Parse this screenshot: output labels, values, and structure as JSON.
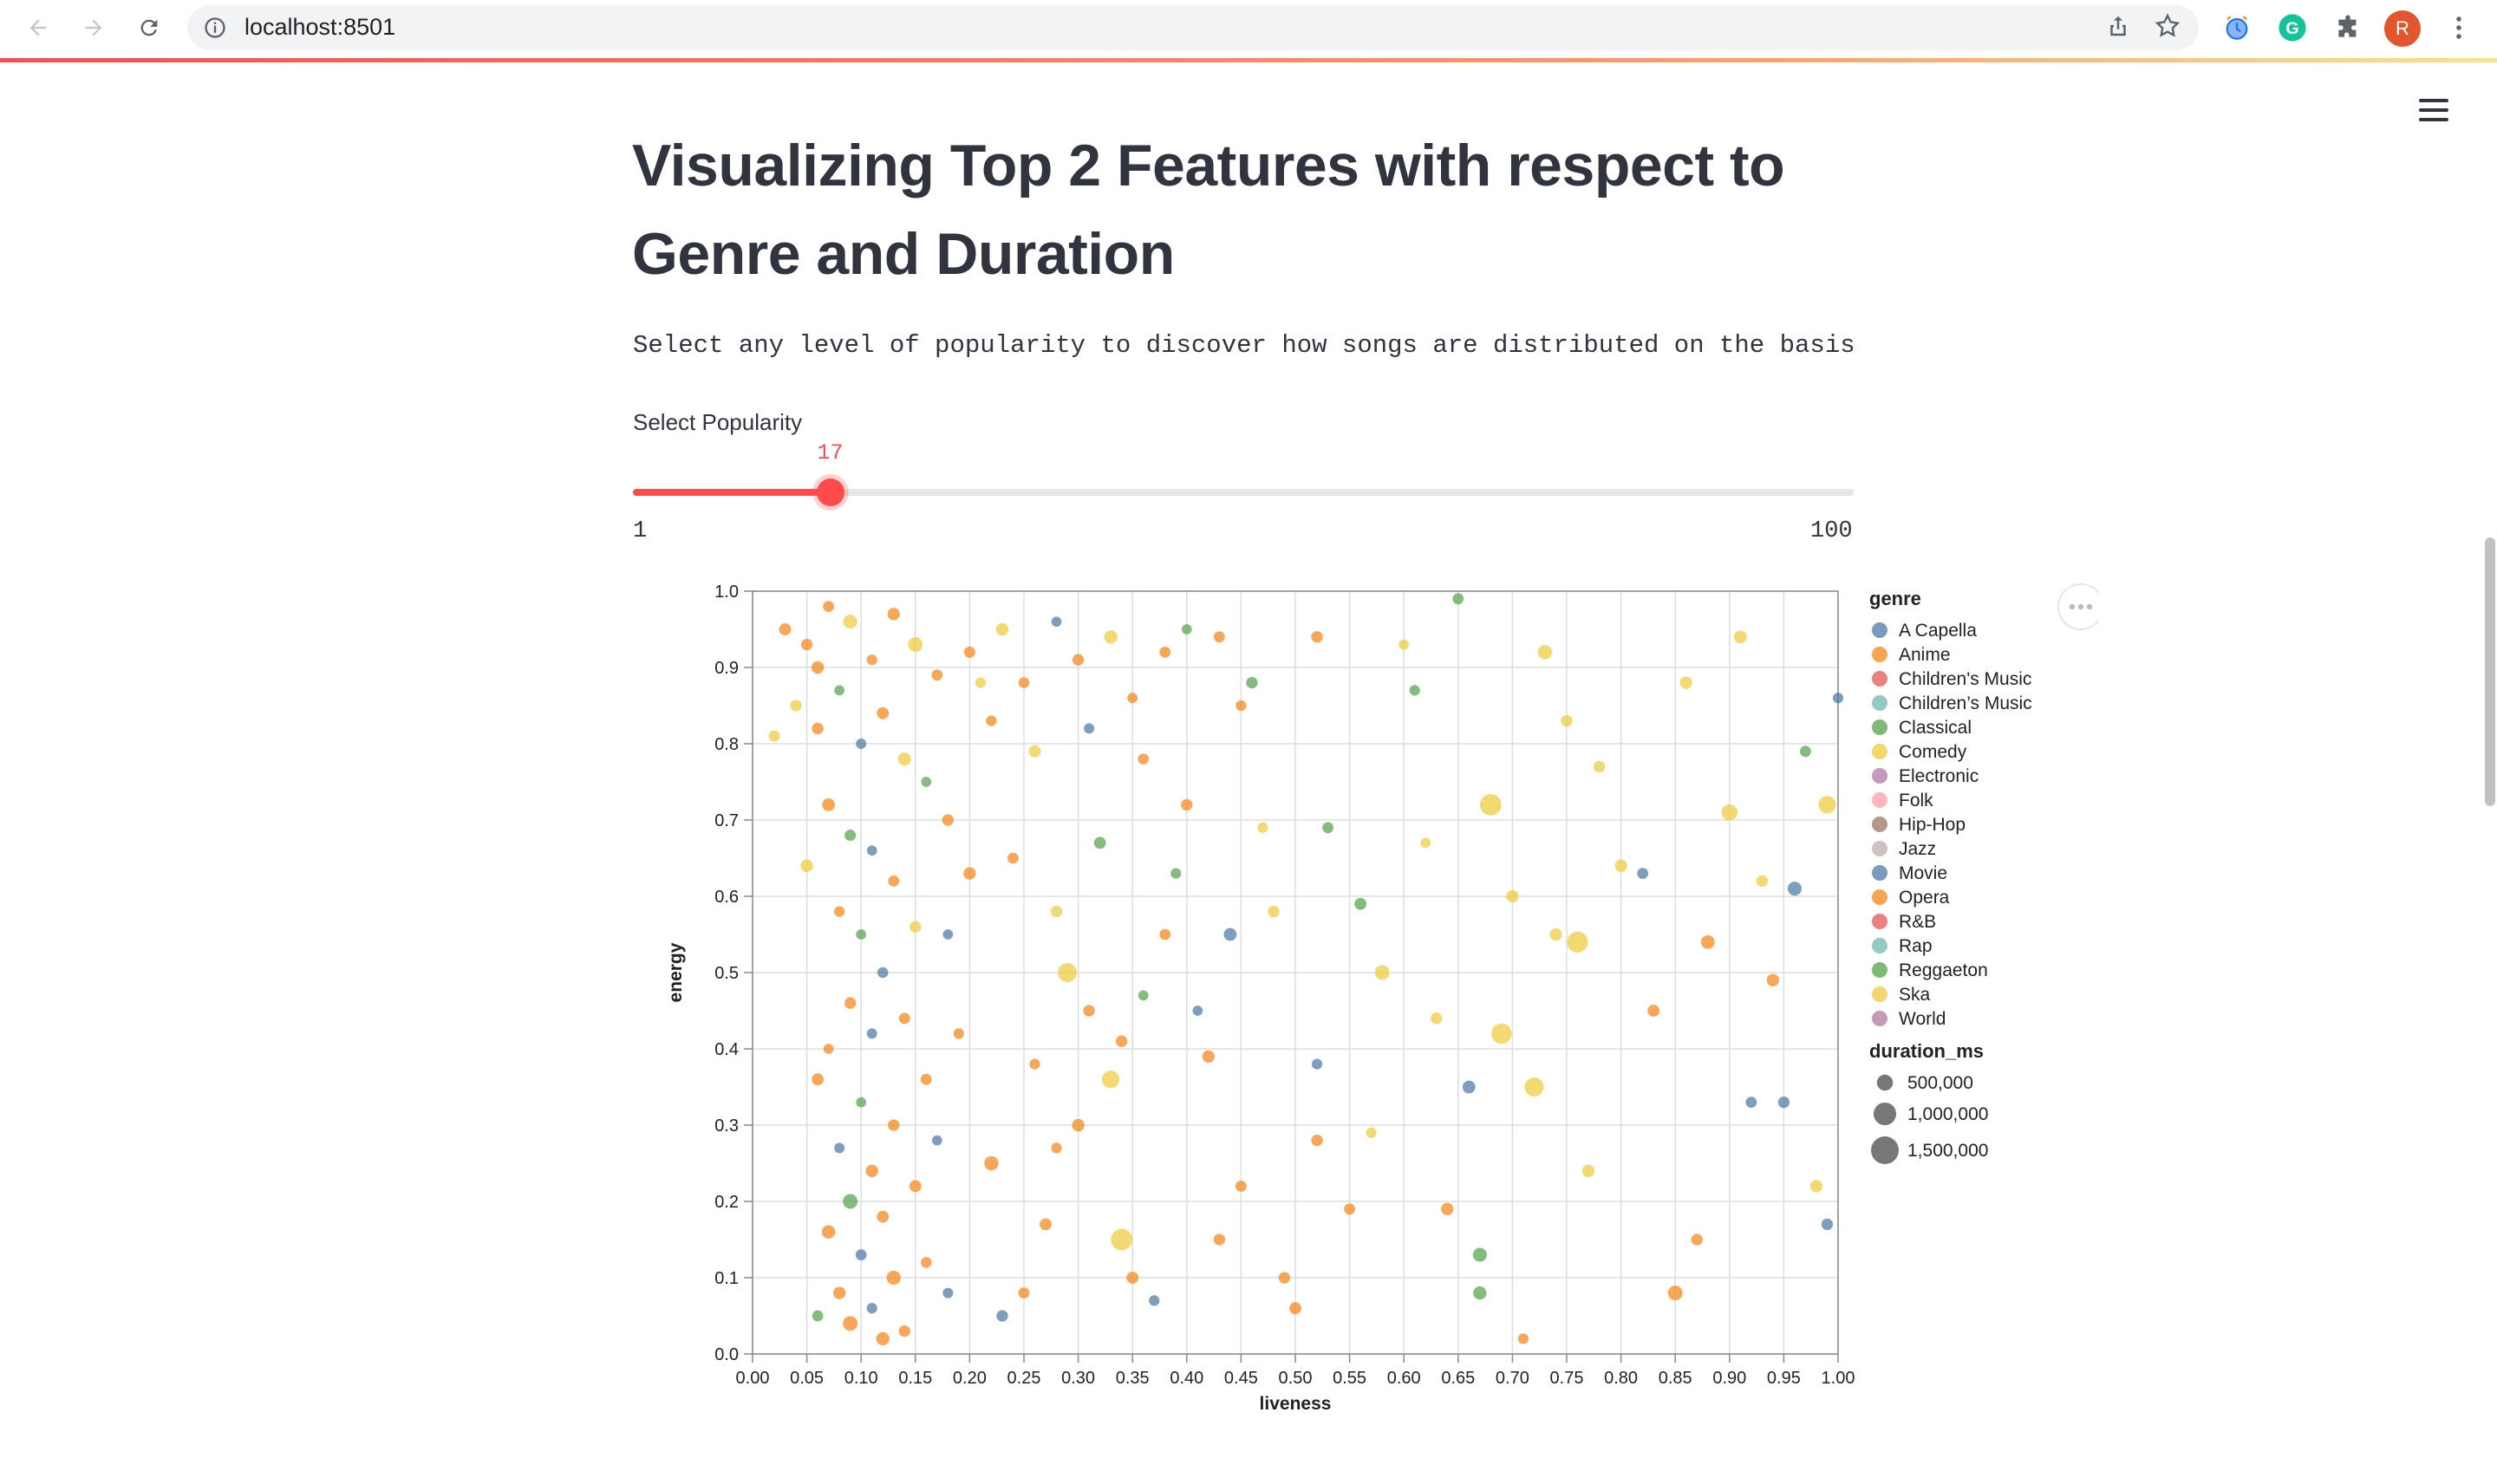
{
  "browser": {
    "url": "localhost:8501",
    "profile_initial": "R",
    "icons": [
      "back-icon",
      "forward-icon",
      "reload-icon",
      "info-icon",
      "share-icon",
      "star-icon",
      "alarm-extension-icon",
      "grammarly-icon",
      "puzzle-icon",
      "menu-kebab-icon"
    ]
  },
  "page": {
    "title": "Visualizing Top 2 Features with respect to Genre and Duration",
    "description": "Select any level of popularity to discover how songs are distributed on the basis of",
    "accent_color": "#ff4b4b"
  },
  "slider": {
    "label": "Select Popularity",
    "value": 17,
    "value_text": "17",
    "min": 1,
    "max": 100,
    "min_text": "1",
    "max_text": "100"
  },
  "chart_data": {
    "type": "scatter",
    "xlabel": "liveness",
    "ylabel": "energy",
    "xlim": [
      0,
      1
    ],
    "ylim": [
      0,
      1
    ],
    "x_ticks": [
      "0.00",
      "0.05",
      "0.10",
      "0.15",
      "0.20",
      "0.25",
      "0.30",
      "0.35",
      "0.40",
      "0.45",
      "0.50",
      "0.55",
      "0.60",
      "0.65",
      "0.70",
      "0.75",
      "0.80",
      "0.85",
      "0.90",
      "0.95",
      "1.00"
    ],
    "y_ticks": [
      "0.0",
      "0.1",
      "0.2",
      "0.3",
      "0.4",
      "0.5",
      "0.6",
      "0.7",
      "0.8",
      "0.9",
      "1.0"
    ],
    "grid": true,
    "legend_position": "right",
    "color_legend_title": "genre",
    "genres": [
      {
        "name": "A Capella",
        "color": "#4c78a8"
      },
      {
        "name": "Anime",
        "color": "#f58518"
      },
      {
        "name": "Children's Music",
        "color": "#e45756"
      },
      {
        "name": "Children’s Music",
        "color": "#72b7b2"
      },
      {
        "name": "Classical",
        "color": "#54a24b"
      },
      {
        "name": "Comedy",
        "color": "#eeca3b"
      },
      {
        "name": "Electronic",
        "color": "#b279a2"
      },
      {
        "name": "Folk",
        "color": "#ff9da6"
      },
      {
        "name": "Hip-Hop",
        "color": "#9d755d"
      },
      {
        "name": "Jazz",
        "color": "#bab0ac"
      },
      {
        "name": "Movie",
        "color": "#4c78a8"
      },
      {
        "name": "Opera",
        "color": "#f58518"
      },
      {
        "name": "R&B",
        "color": "#e45756"
      },
      {
        "name": "Rap",
        "color": "#72b7b2"
      },
      {
        "name": "Reggaeton",
        "color": "#54a24b"
      },
      {
        "name": "Ska",
        "color": "#eeca3b"
      },
      {
        "name": "World",
        "color": "#b279a2"
      }
    ],
    "size_legend_title": "duration_ms",
    "size_legend": [
      {
        "label": "500,000",
        "value": 500000
      },
      {
        "label": "1,000,000",
        "value": 1000000
      },
      {
        "label": "1,500,000",
        "value": 1500000
      }
    ],
    "points": [
      {
        "x": 0.05,
        "y": 0.93,
        "g": "Anime",
        "d": 260000
      },
      {
        "x": 0.07,
        "y": 0.98,
        "g": "Anime",
        "d": 240000
      },
      {
        "x": 0.09,
        "y": 0.96,
        "g": "Comedy",
        "d": 380000
      },
      {
        "x": 0.11,
        "y": 0.91,
        "g": "Anime",
        "d": 220000
      },
      {
        "x": 0.13,
        "y": 0.97,
        "g": "Anime",
        "d": 300000
      },
      {
        "x": 0.15,
        "y": 0.93,
        "g": "Comedy",
        "d": 420000
      },
      {
        "x": 0.08,
        "y": 0.87,
        "g": "Classical",
        "d": 200000
      },
      {
        "x": 0.06,
        "y": 0.82,
        "g": "Anime",
        "d": 260000
      },
      {
        "x": 0.1,
        "y": 0.8,
        "g": "Movie",
        "d": 210000
      },
      {
        "x": 0.12,
        "y": 0.84,
        "g": "Anime",
        "d": 280000
      },
      {
        "x": 0.14,
        "y": 0.78,
        "g": "Comedy",
        "d": 330000
      },
      {
        "x": 0.17,
        "y": 0.89,
        "g": "Anime",
        "d": 240000
      },
      {
        "x": 0.2,
        "y": 0.92,
        "g": "Anime",
        "d": 250000
      },
      {
        "x": 0.23,
        "y": 0.95,
        "g": "Comedy",
        "d": 310000
      },
      {
        "x": 0.25,
        "y": 0.88,
        "g": "Anime",
        "d": 230000
      },
      {
        "x": 0.28,
        "y": 0.96,
        "g": "Movie",
        "d": 200000
      },
      {
        "x": 0.3,
        "y": 0.91,
        "g": "Anime",
        "d": 260000
      },
      {
        "x": 0.33,
        "y": 0.94,
        "g": "Comedy",
        "d": 350000
      },
      {
        "x": 0.35,
        "y": 0.86,
        "g": "Anime",
        "d": 210000
      },
      {
        "x": 0.38,
        "y": 0.92,
        "g": "Anime",
        "d": 240000
      },
      {
        "x": 0.4,
        "y": 0.95,
        "g": "Classical",
        "d": 200000
      },
      {
        "x": 0.22,
        "y": 0.83,
        "g": "Anime",
        "d": 220000
      },
      {
        "x": 0.26,
        "y": 0.79,
        "g": "Comedy",
        "d": 290000
      },
      {
        "x": 0.31,
        "y": 0.82,
        "g": "Movie",
        "d": 210000
      },
      {
        "x": 0.36,
        "y": 0.78,
        "g": "Anime",
        "d": 230000
      },
      {
        "x": 0.16,
        "y": 0.75,
        "g": "Classical",
        "d": 200000
      },
      {
        "x": 0.18,
        "y": 0.7,
        "g": "Anime",
        "d": 260000
      },
      {
        "x": 0.07,
        "y": 0.72,
        "g": "Anime",
        "d": 320000
      },
      {
        "x": 0.09,
        "y": 0.68,
        "g": "Classical",
        "d": 250000
      },
      {
        "x": 0.11,
        "y": 0.66,
        "g": "Movie",
        "d": 200000
      },
      {
        "x": 0.05,
        "y": 0.64,
        "g": "Comedy",
        "d": 300000
      },
      {
        "x": 0.13,
        "y": 0.62,
        "g": "Anime",
        "d": 240000
      },
      {
        "x": 0.08,
        "y": 0.58,
        "g": "Anime",
        "d": 220000
      },
      {
        "x": 0.1,
        "y": 0.55,
        "g": "Classical",
        "d": 200000
      },
      {
        "x": 0.12,
        "y": 0.5,
        "g": "Movie",
        "d": 230000
      },
      {
        "x": 0.09,
        "y": 0.46,
        "g": "Anime",
        "d": 260000
      },
      {
        "x": 0.11,
        "y": 0.42,
        "g": "Movie",
        "d": 210000
      },
      {
        "x": 0.07,
        "y": 0.4,
        "g": "Anime",
        "d": 200000
      },
      {
        "x": 0.14,
        "y": 0.44,
        "g": "Anime",
        "d": 240000
      },
      {
        "x": 0.06,
        "y": 0.36,
        "g": "Anime",
        "d": 280000
      },
      {
        "x": 0.1,
        "y": 0.33,
        "g": "Classical",
        "d": 200000
      },
      {
        "x": 0.13,
        "y": 0.3,
        "g": "Anime",
        "d": 260000
      },
      {
        "x": 0.08,
        "y": 0.27,
        "g": "Movie",
        "d": 210000
      },
      {
        "x": 0.11,
        "y": 0.24,
        "g": "Anime",
        "d": 300000
      },
      {
        "x": 0.09,
        "y": 0.2,
        "g": "Classical",
        "d": 420000
      },
      {
        "x": 0.12,
        "y": 0.18,
        "g": "Anime",
        "d": 280000
      },
      {
        "x": 0.07,
        "y": 0.16,
        "g": "Anime",
        "d": 350000
      },
      {
        "x": 0.1,
        "y": 0.13,
        "g": "Movie",
        "d": 240000
      },
      {
        "x": 0.13,
        "y": 0.1,
        "g": "Anime",
        "d": 380000
      },
      {
        "x": 0.08,
        "y": 0.08,
        "g": "Anime",
        "d": 300000
      },
      {
        "x": 0.11,
        "y": 0.06,
        "g": "Movie",
        "d": 220000
      },
      {
        "x": 0.09,
        "y": 0.04,
        "g": "Anime",
        "d": 420000
      },
      {
        "x": 0.14,
        "y": 0.03,
        "g": "Anime",
        "d": 260000
      },
      {
        "x": 0.06,
        "y": 0.05,
        "g": "Classical",
        "d": 240000
      },
      {
        "x": 0.12,
        "y": 0.02,
        "g": "Anime",
        "d": 340000
      },
      {
        "x": 0.16,
        "y": 0.12,
        "g": "Anime",
        "d": 230000
      },
      {
        "x": 0.18,
        "y": 0.08,
        "g": "Movie",
        "d": 210000
      },
      {
        "x": 0.15,
        "y": 0.22,
        "g": "Anime",
        "d": 280000
      },
      {
        "x": 0.17,
        "y": 0.28,
        "g": "Movie",
        "d": 200000
      },
      {
        "x": 0.16,
        "y": 0.36,
        "g": "Anime",
        "d": 240000
      },
      {
        "x": 0.19,
        "y": 0.42,
        "g": "Anime",
        "d": 220000
      },
      {
        "x": 0.18,
        "y": 0.55,
        "g": "Movie",
        "d": 200000
      },
      {
        "x": 0.2,
        "y": 0.63,
        "g": "Anime",
        "d": 300000
      },
      {
        "x": 0.22,
        "y": 0.25,
        "g": "Anime",
        "d": 400000
      },
      {
        "x": 0.23,
        "y": 0.05,
        "g": "Movie",
        "d": 260000
      },
      {
        "x": 0.25,
        "y": 0.08,
        "g": "Anime",
        "d": 240000
      },
      {
        "x": 0.27,
        "y": 0.17,
        "g": "Anime",
        "d": 280000
      },
      {
        "x": 0.28,
        "y": 0.27,
        "g": "Anime",
        "d": 220000
      },
      {
        "x": 0.3,
        "y": 0.3,
        "g": "Anime",
        "d": 300000
      },
      {
        "x": 0.29,
        "y": 0.5,
        "g": "Comedy",
        "d": 700000
      },
      {
        "x": 0.31,
        "y": 0.45,
        "g": "Anime",
        "d": 260000
      },
      {
        "x": 0.33,
        "y": 0.36,
        "g": "Comedy",
        "d": 600000
      },
      {
        "x": 0.34,
        "y": 0.15,
        "g": "Comedy",
        "d": 900000
      },
      {
        "x": 0.35,
        "y": 0.1,
        "g": "Anime",
        "d": 280000
      },
      {
        "x": 0.37,
        "y": 0.07,
        "g": "Movie",
        "d": 220000
      },
      {
        "x": 0.34,
        "y": 0.41,
        "g": "Anime",
        "d": 260000
      },
      {
        "x": 0.36,
        "y": 0.47,
        "g": "Classical",
        "d": 200000
      },
      {
        "x": 0.38,
        "y": 0.55,
        "g": "Anime",
        "d": 240000
      },
      {
        "x": 0.39,
        "y": 0.63,
        "g": "Classical",
        "d": 220000
      },
      {
        "x": 0.4,
        "y": 0.72,
        "g": "Anime",
        "d": 260000
      },
      {
        "x": 0.42,
        "y": 0.39,
        "g": "Anime",
        "d": 300000
      },
      {
        "x": 0.43,
        "y": 0.15,
        "g": "Anime",
        "d": 260000
      },
      {
        "x": 0.44,
        "y": 0.55,
        "g": "Movie",
        "d": 320000
      },
      {
        "x": 0.45,
        "y": 0.22,
        "g": "Anime",
        "d": 240000
      },
      {
        "x": 0.47,
        "y": 0.69,
        "g": "Comedy",
        "d": 220000
      },
      {
        "x": 0.48,
        "y": 0.58,
        "g": "Comedy",
        "d": 260000
      },
      {
        "x": 0.49,
        "y": 0.1,
        "g": "Anime",
        "d": 260000
      },
      {
        "x": 0.5,
        "y": 0.06,
        "g": "Anime",
        "d": 280000
      },
      {
        "x": 0.52,
        "y": 0.38,
        "g": "Movie",
        "d": 220000
      },
      {
        "x": 0.52,
        "y": 0.28,
        "g": "Anime",
        "d": 260000
      },
      {
        "x": 0.53,
        "y": 0.69,
        "g": "Classical",
        "d": 240000
      },
      {
        "x": 0.55,
        "y": 0.19,
        "g": "Anime",
        "d": 240000
      },
      {
        "x": 0.56,
        "y": 0.59,
        "g": "Classical",
        "d": 280000
      },
      {
        "x": 0.58,
        "y": 0.5,
        "g": "Comedy",
        "d": 420000
      },
      {
        "x": 0.6,
        "y": 0.93,
        "g": "Comedy",
        "d": 200000
      },
      {
        "x": 0.61,
        "y": 0.87,
        "g": "Classical",
        "d": 220000
      },
      {
        "x": 0.62,
        "y": 0.67,
        "g": "Comedy",
        "d": 200000
      },
      {
        "x": 0.64,
        "y": 0.19,
        "g": "Anime",
        "d": 300000
      },
      {
        "x": 0.65,
        "y": 0.99,
        "g": "Classical",
        "d": 240000
      },
      {
        "x": 0.66,
        "y": 0.35,
        "g": "Movie",
        "d": 320000
      },
      {
        "x": 0.67,
        "y": 0.13,
        "g": "Classical",
        "d": 380000
      },
      {
        "x": 0.67,
        "y": 0.08,
        "g": "Classical",
        "d": 340000
      },
      {
        "x": 0.68,
        "y": 0.72,
        "g": "Comedy",
        "d": 900000
      },
      {
        "x": 0.69,
        "y": 0.42,
        "g": "Comedy",
        "d": 800000
      },
      {
        "x": 0.7,
        "y": 0.6,
        "g": "Comedy",
        "d": 300000
      },
      {
        "x": 0.72,
        "y": 0.35,
        "g": "Comedy",
        "d": 700000
      },
      {
        "x": 0.73,
        "y": 0.92,
        "g": "Comedy",
        "d": 400000
      },
      {
        "x": 0.74,
        "y": 0.55,
        "g": "Comedy",
        "d": 300000
      },
      {
        "x": 0.75,
        "y": 0.83,
        "g": "Comedy",
        "d": 260000
      },
      {
        "x": 0.76,
        "y": 0.54,
        "g": "Comedy",
        "d": 850000
      },
      {
        "x": 0.78,
        "y": 0.77,
        "g": "Comedy",
        "d": 260000
      },
      {
        "x": 0.8,
        "y": 0.64,
        "g": "Comedy",
        "d": 300000
      },
      {
        "x": 0.82,
        "y": 0.63,
        "g": "Movie",
        "d": 240000
      },
      {
        "x": 0.83,
        "y": 0.45,
        "g": "Anime",
        "d": 280000
      },
      {
        "x": 0.85,
        "y": 0.08,
        "g": "Anime",
        "d": 420000
      },
      {
        "x": 0.86,
        "y": 0.88,
        "g": "Comedy",
        "d": 300000
      },
      {
        "x": 0.88,
        "y": 0.54,
        "g": "Anime",
        "d": 360000
      },
      {
        "x": 0.9,
        "y": 0.71,
        "g": "Comedy",
        "d": 500000
      },
      {
        "x": 0.91,
        "y": 0.94,
        "g": "Comedy",
        "d": 320000
      },
      {
        "x": 0.92,
        "y": 0.33,
        "g": "Movie",
        "d": 240000
      },
      {
        "x": 0.93,
        "y": 0.62,
        "g": "Comedy",
        "d": 260000
      },
      {
        "x": 0.94,
        "y": 0.49,
        "g": "Anime",
        "d": 300000
      },
      {
        "x": 0.95,
        "y": 0.33,
        "g": "Movie",
        "d": 260000
      },
      {
        "x": 0.96,
        "y": 0.61,
        "g": "Movie",
        "d": 380000
      },
      {
        "x": 0.97,
        "y": 0.79,
        "g": "Classical",
        "d": 240000
      },
      {
        "x": 0.98,
        "y": 0.22,
        "g": "Comedy",
        "d": 300000
      },
      {
        "x": 0.99,
        "y": 0.72,
        "g": "Comedy",
        "d": 600000
      },
      {
        "x": 1.0,
        "y": 0.86,
        "g": "Movie",
        "d": 220000
      },
      {
        "x": 0.99,
        "y": 0.17,
        "g": "Movie",
        "d": 260000
      },
      {
        "x": 0.87,
        "y": 0.15,
        "g": "Anime",
        "d": 260000
      },
      {
        "x": 0.77,
        "y": 0.24,
        "g": "Comedy",
        "d": 300000
      },
      {
        "x": 0.71,
        "y": 0.02,
        "g": "Anime",
        "d": 220000
      },
      {
        "x": 0.63,
        "y": 0.44,
        "g": "Comedy",
        "d": 260000
      },
      {
        "x": 0.57,
        "y": 0.29,
        "g": "Comedy",
        "d": 220000
      },
      {
        "x": 0.46,
        "y": 0.88,
        "g": "Classical",
        "d": 260000
      },
      {
        "x": 0.43,
        "y": 0.94,
        "g": "Anime",
        "d": 240000
      },
      {
        "x": 0.52,
        "y": 0.94,
        "g": "Anime",
        "d": 260000
      },
      {
        "x": 0.41,
        "y": 0.45,
        "g": "Movie",
        "d": 200000
      },
      {
        "x": 0.06,
        "y": 0.9,
        "g": "Anime",
        "d": 300000
      },
      {
        "x": 0.04,
        "y": 0.85,
        "g": "Comedy",
        "d": 260000
      },
      {
        "x": 0.03,
        "y": 0.95,
        "g": "Anime",
        "d": 280000
      },
      {
        "x": 0.02,
        "y": 0.81,
        "g": "Comedy",
        "d": 240000
      },
      {
        "x": 0.15,
        "y": 0.56,
        "g": "Comedy",
        "d": 260000
      },
      {
        "x": 0.21,
        "y": 0.88,
        "g": "Comedy",
        "d": 220000
      },
      {
        "x": 0.24,
        "y": 0.65,
        "g": "Anime",
        "d": 240000
      },
      {
        "x": 0.26,
        "y": 0.38,
        "g": "Anime",
        "d": 220000
      },
      {
        "x": 0.32,
        "y": 0.67,
        "g": "Classical",
        "d": 280000
      },
      {
        "x": 0.28,
        "y": 0.58,
        "g": "Comedy",
        "d": 260000
      },
      {
        "x": 0.45,
        "y": 0.85,
        "g": "Anime",
        "d": 220000
      }
    ]
  }
}
